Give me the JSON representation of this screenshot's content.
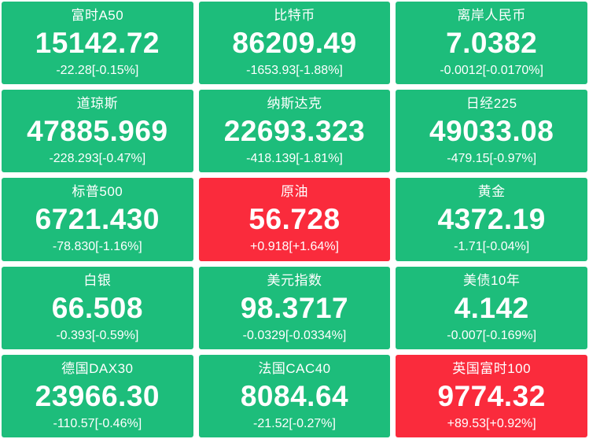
{
  "colors": {
    "up": "#fa2b3c",
    "down": "#1dbd7b",
    "text": "#ffffff",
    "background": "#ffffff"
  },
  "tiles": [
    {
      "name": "富时A50",
      "price": "15142.72",
      "change": "-22.28[-0.15%]",
      "direction": "down"
    },
    {
      "name": "比特币",
      "price": "86209.49",
      "change": "-1653.93[-1.88%]",
      "direction": "down"
    },
    {
      "name": "离岸人民币",
      "price": "7.0382",
      "change": "-0.0012[-0.0170%]",
      "direction": "down"
    },
    {
      "name": "道琼斯",
      "price": "47885.969",
      "change": "-228.293[-0.47%]",
      "direction": "down"
    },
    {
      "name": "纳斯达克",
      "price": "22693.323",
      "change": "-418.139[-1.81%]",
      "direction": "down"
    },
    {
      "name": "日经225",
      "price": "49033.08",
      "change": "-479.15[-0.97%]",
      "direction": "down"
    },
    {
      "name": "标普500",
      "price": "6721.430",
      "change": "-78.830[-1.16%]",
      "direction": "down"
    },
    {
      "name": "原油",
      "price": "56.728",
      "change": "+0.918[+1.64%]",
      "direction": "up"
    },
    {
      "name": "黄金",
      "price": "4372.19",
      "change": "-1.71[-0.04%]",
      "direction": "down"
    },
    {
      "name": "白银",
      "price": "66.508",
      "change": "-0.393[-0.59%]",
      "direction": "down"
    },
    {
      "name": "美元指数",
      "price": "98.3717",
      "change": "-0.0329[-0.0334%]",
      "direction": "down"
    },
    {
      "name": "美债10年",
      "price": "4.142",
      "change": "-0.007[-0.169%]",
      "direction": "down"
    },
    {
      "name": "德国DAX30",
      "price": "23966.30",
      "change": "-110.57[-0.46%]",
      "direction": "down"
    },
    {
      "name": "法国CAC40",
      "price": "8084.64",
      "change": "-21.52[-0.27%]",
      "direction": "down"
    },
    {
      "name": "英国富时100",
      "price": "9774.32",
      "change": "+89.53[+0.92%]",
      "direction": "up"
    }
  ]
}
